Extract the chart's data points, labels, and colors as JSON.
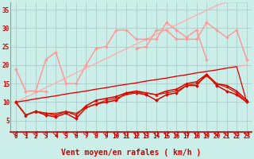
{
  "title": "",
  "xlabel": "Vent moyen/en rafales ( km/h )",
  "ylabel": "",
  "background_color": "#cceee8",
  "grid_color": "#aacccc",
  "x": [
    0,
    1,
    2,
    3,
    4,
    5,
    6,
    7,
    8,
    9,
    10,
    11,
    12,
    13,
    14,
    15,
    16,
    17,
    18,
    19,
    20,
    21,
    22,
    23
  ],
  "xlim": [
    -0.5,
    23.5
  ],
  "ylim": [
    2,
    37
  ],
  "yticks": [
    5,
    10,
    15,
    20,
    25,
    30,
    35
  ],
  "series": [
    {
      "color": "#ffaaaa",
      "linewidth": 0.9,
      "marker": null,
      "markersize": 0,
      "values": [
        10.0,
        10.4,
        10.9,
        11.3,
        11.7,
        12.2,
        12.6,
        13.0,
        13.5,
        13.9,
        14.4,
        14.8,
        15.2,
        15.7,
        16.1,
        16.5,
        17.0,
        17.4,
        17.9,
        18.3,
        18.7,
        19.2,
        19.6,
        20.0
      ]
    },
    {
      "color": "#ffaaaa",
      "linewidth": 0.9,
      "marker": null,
      "markersize": 0,
      "values": [
        10.0,
        11.3,
        12.6,
        13.9,
        15.2,
        16.5,
        17.9,
        19.2,
        20.5,
        21.8,
        23.1,
        24.4,
        25.7,
        27.0,
        28.3,
        29.6,
        30.9,
        32.2,
        33.5,
        34.8,
        36.1,
        37.0,
        37.0,
        37.0
      ]
    },
    {
      "color": "#ff9999",
      "linewidth": 1.1,
      "marker": "D",
      "markersize": 2.0,
      "values": [
        19.0,
        13.0,
        13.0,
        21.5,
        23.5,
        15.0,
        15.0,
        20.0,
        24.5,
        25.0,
        29.5,
        29.5,
        27.0,
        27.0,
        27.0,
        31.5,
        29.5,
        27.5,
        29.5,
        21.5,
        null,
        null,
        null,
        null
      ]
    },
    {
      "color": "#ff9999",
      "linewidth": 1.1,
      "marker": "D",
      "markersize": 2.0,
      "values": [
        null,
        null,
        13.0,
        13.0,
        null,
        null,
        null,
        null,
        null,
        null,
        null,
        null,
        24.5,
        25.0,
        29.5,
        29.5,
        27.0,
        27.0,
        27.0,
        31.5,
        29.5,
        27.5,
        29.5,
        21.5
      ]
    },
    {
      "color": "#dd0000",
      "linewidth": 1.1,
      "marker": "D",
      "markersize": 2.0,
      "values": [
        10.0,
        6.5,
        7.5,
        6.5,
        6.0,
        7.0,
        5.5,
        8.5,
        9.5,
        10.0,
        10.5,
        12.5,
        12.5,
        12.0,
        10.5,
        12.0,
        12.5,
        14.5,
        14.5,
        17.5,
        14.5,
        13.0,
        12.0,
        10.0
      ]
    },
    {
      "color": "#dd0000",
      "linewidth": 1.1,
      "marker": "^",
      "markersize": 2.5,
      "values": [
        10.0,
        6.5,
        7.5,
        7.0,
        6.5,
        7.5,
        6.5,
        9.0,
        10.5,
        11.0,
        11.5,
        12.5,
        13.0,
        12.5,
        12.0,
        13.0,
        13.5,
        15.0,
        15.5,
        17.5,
        15.0,
        14.5,
        13.0,
        10.5
      ]
    },
    {
      "color": "#dd0000",
      "linewidth": 0.9,
      "marker": null,
      "markersize": 0,
      "values": [
        10.0,
        10.4,
        10.9,
        11.3,
        11.7,
        12.2,
        12.6,
        13.0,
        13.5,
        13.9,
        14.4,
        14.8,
        15.2,
        15.7,
        16.1,
        16.5,
        17.0,
        17.4,
        17.9,
        18.3,
        18.7,
        19.2,
        19.6,
        10.0
      ]
    },
    {
      "color": "#cc2200",
      "linewidth": 0.9,
      "marker": null,
      "markersize": 0,
      "values": [
        10.0,
        6.5,
        7.5,
        7.0,
        7.0,
        7.5,
        7.0,
        8.5,
        9.5,
        10.5,
        11.0,
        12.0,
        12.5,
        12.5,
        12.0,
        12.5,
        13.0,
        14.5,
        15.0,
        17.0,
        15.0,
        14.0,
        12.5,
        10.0
      ]
    }
  ],
  "arrow_color": "#cc0000",
  "xlabel_color": "#cc0000",
  "tick_color": "#cc0000",
  "axis_label_fontsize": 7,
  "tick_fontsize": 5.5
}
